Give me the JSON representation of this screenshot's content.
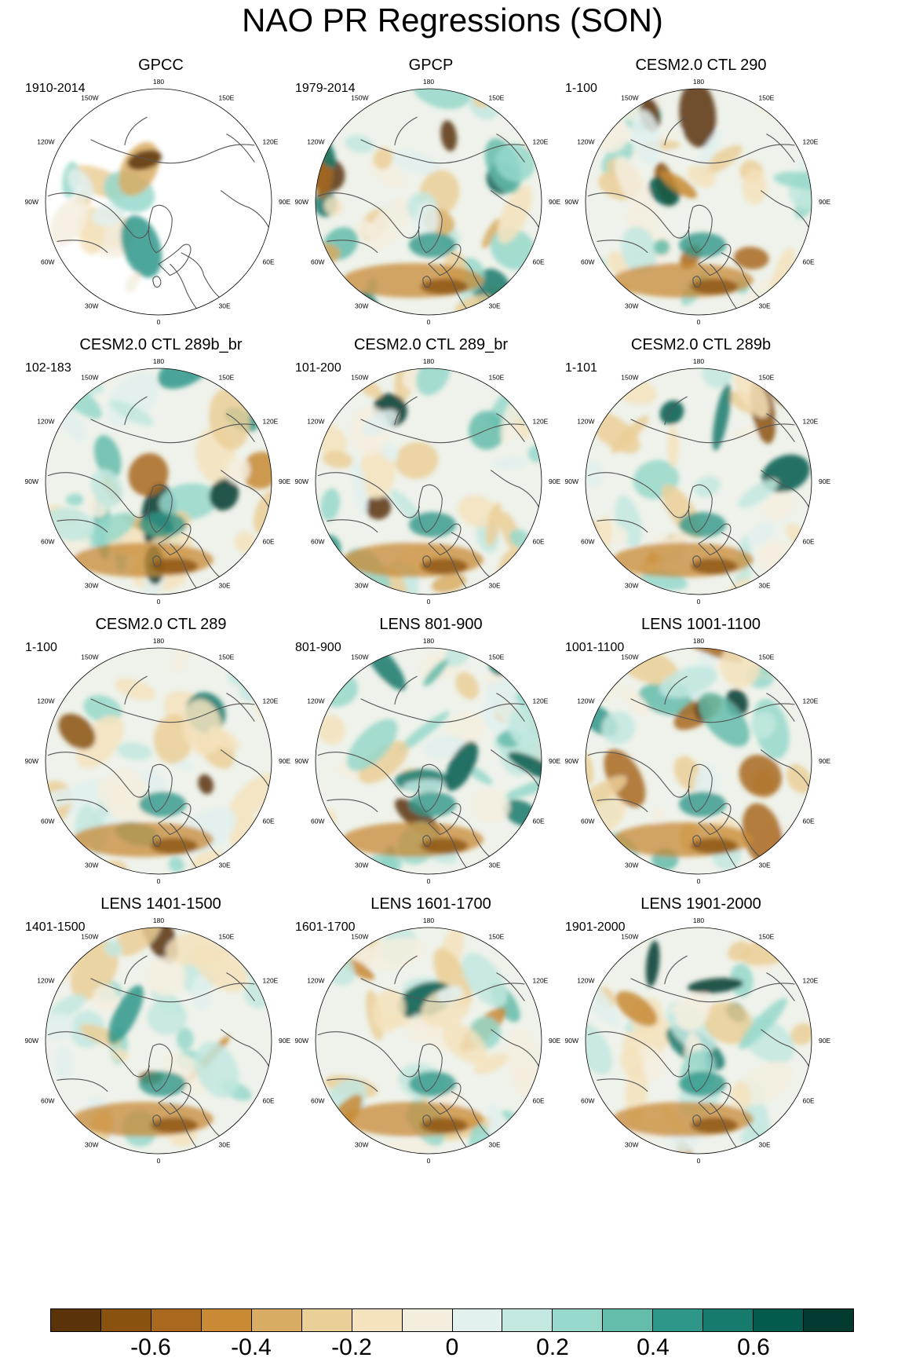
{
  "title": "NAO PR Regressions (SON)",
  "longitude_labels": [
    "180",
    "150E",
    "120E",
    "90E",
    "60E",
    "30E",
    "0",
    "30W",
    "60W",
    "90W",
    "120W",
    "150W"
  ],
  "panels": [
    {
      "title": "GPCC",
      "period": "1910-2014"
    },
    {
      "title": "GPCP",
      "period": "1979-2014"
    },
    {
      "title": "CESM2.0 CTL 290",
      "period": "1-100"
    },
    {
      "title": "CESM2.0 CTL 289b_br",
      "period": "102-183"
    },
    {
      "title": "CESM2.0 CTL 289_br",
      "period": "101-200"
    },
    {
      "title": "CESM2.0 CTL 289b",
      "period": "1-101"
    },
    {
      "title": "CESM2.0 CTL 289",
      "period": "1-100"
    },
    {
      "title": "LENS 801-900",
      "period": "801-900"
    },
    {
      "title": "LENS 1001-1100",
      "period": "1001-1100"
    },
    {
      "title": "LENS 1401-1500",
      "period": "1401-1500"
    },
    {
      "title": "LENS 1601-1700",
      "period": "1601-1700"
    },
    {
      "title": "LENS 1901-2000",
      "period": "1901-2000"
    }
  ],
  "colorbar": {
    "colors": [
      "#5a3308",
      "#8a520f",
      "#a8691f",
      "#c88a34",
      "#d8ad63",
      "#ebcf98",
      "#f5e3bd",
      "#f4eedf",
      "#e2f0ee",
      "#c2e8e1",
      "#97d8cb",
      "#64bcaa",
      "#2f978a",
      "#167a6c",
      "#045a4c",
      "#013b30"
    ],
    "tick_labels": [
      "-0.6",
      "-0.4",
      "-0.2",
      "0",
      "0.2",
      "0.4",
      "0.6"
    ]
  }
}
